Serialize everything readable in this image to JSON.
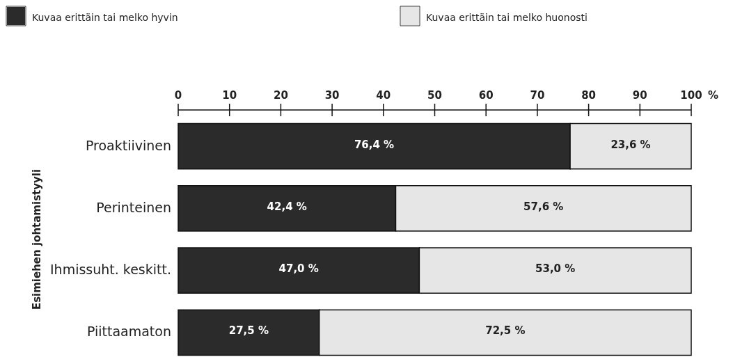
{
  "chart_data": {
    "type": "bar",
    "orientation": "horizontal",
    "stacked": true,
    "ylabel": "Esimiehen johtamistyyli",
    "xlabel": "%",
    "categories": [
      "Proaktiivinen",
      "Perinteinen",
      "Ihmissuht. keskitt.",
      "Piittaamaton"
    ],
    "series": [
      {
        "name": "Kuvaa erittäin tai melko hyvin",
        "color": "#2b2b2b",
        "values": [
          76.4,
          42.4,
          47.0,
          27.5
        ],
        "value_labels": [
          "76,4 %",
          "42,4 %",
          "47,0 %",
          "27,5 %"
        ]
      },
      {
        "name": "Kuvaa erittäin tai melko huonosti",
        "color": "#e6e6e6",
        "values": [
          23.6,
          57.6,
          53.0,
          72.5
        ],
        "value_labels": [
          "23,6 %",
          "57,6 %",
          "53,0 %",
          "72,5 %"
        ]
      }
    ],
    "xlim": [
      0,
      100
    ],
    "xticks": [
      0,
      10,
      20,
      30,
      40,
      50,
      60,
      70,
      80,
      90,
      100
    ],
    "grid": false,
    "legend": "top"
  }
}
